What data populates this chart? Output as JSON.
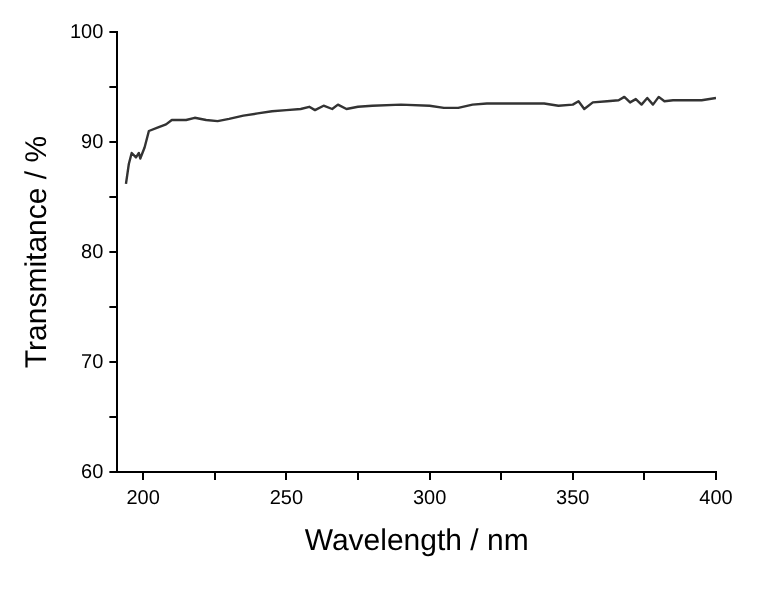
{
  "chart_data": {
    "type": "line",
    "xlabel": "Wavelength / nm",
    "ylabel": "Transmitance / %",
    "xlim": [
      191,
      400
    ],
    "ylim": [
      60,
      100
    ],
    "xticks": [
      200,
      {
        "value": 225,
        "label": null
      },
      250,
      {
        "value": 275,
        "label": null
      },
      300,
      {
        "value": 325,
        "label": null
      },
      350,
      {
        "value": 375,
        "label": null
      },
      400
    ],
    "yticks": [
      60,
      {
        "value": 65,
        "label": null
      },
      70,
      {
        "value": 75,
        "label": null
      },
      80,
      {
        "value": 85,
        "label": null
      },
      90,
      {
        "value": 95,
        "label": null
      },
      100
    ],
    "grid": false,
    "legend": false,
    "marker": "none",
    "line_style": "solid",
    "series": [
      {
        "color": "#333333",
        "x": [
          194,
          195,
          196,
          197.5,
          198.5,
          199,
          200.5,
          202,
          205,
          208,
          210,
          215,
          218,
          222,
          226,
          230,
          235,
          240,
          245,
          250,
          255,
          258,
          260,
          263,
          266,
          268,
          271,
          275,
          280,
          290,
          300,
          305,
          310,
          315,
          320,
          330,
          340,
          345,
          350,
          352,
          354,
          357,
          362,
          366,
          368,
          370,
          372,
          374,
          376,
          378,
          380,
          382,
          385,
          390,
          395,
          400
        ],
        "values": [
          86.2,
          88.0,
          89.0,
          88.6,
          89.0,
          88.5,
          89.5,
          91.0,
          91.3,
          91.6,
          92.0,
          92.0,
          92.2,
          92.0,
          91.9,
          92.1,
          92.4,
          92.6,
          92.8,
          92.9,
          93.0,
          93.2,
          92.9,
          93.3,
          93.0,
          93.4,
          93.0,
          93.2,
          93.3,
          93.4,
          93.3,
          93.1,
          93.1,
          93.4,
          93.5,
          93.5,
          93.5,
          93.3,
          93.4,
          93.7,
          93.0,
          93.6,
          93.7,
          93.8,
          94.1,
          93.6,
          93.9,
          93.4,
          94.0,
          93.4,
          94.1,
          93.7,
          93.8,
          93.8,
          93.8,
          94.0
        ]
      }
    ]
  }
}
